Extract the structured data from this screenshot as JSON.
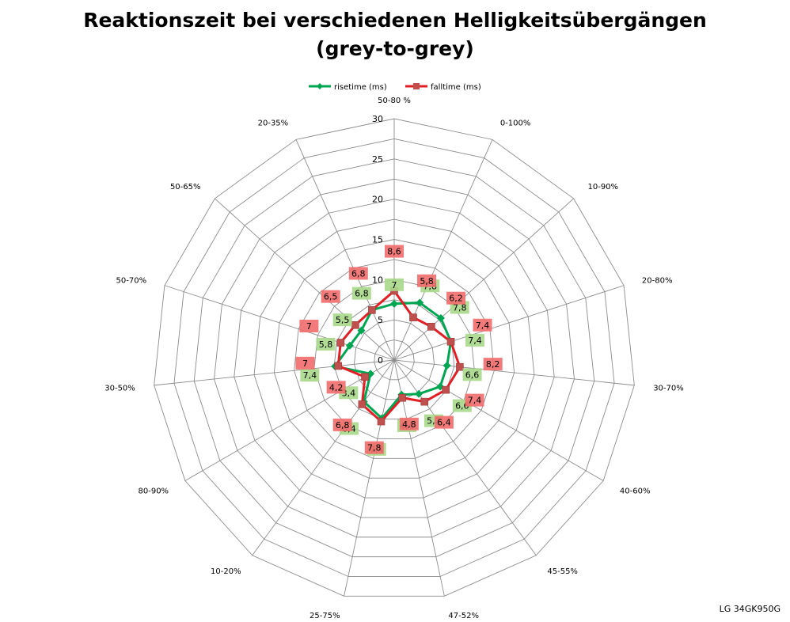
{
  "chart_data": {
    "type": "radar",
    "title_lines": [
      "Reaktionszeit bei verschiedenen Helligkeitsübergängen",
      "(grey-to-grey)"
    ],
    "categories": [
      "50-80 %",
      "0-100%",
      "10-90%",
      "20-80%",
      "30-70%",
      "40-60%",
      "45-55%",
      "47-52%",
      "25-75%",
      "10-20%",
      "80-90%",
      "30-50%",
      "50-70%",
      "50-65%",
      "20-35%"
    ],
    "ylim": [
      0,
      30
    ],
    "ticks": [
      0,
      5,
      10,
      15,
      20,
      25,
      30
    ],
    "grid": true,
    "legend_position": "top",
    "series": [
      {
        "name": "risetime (ms)",
        "color": "#00a651",
        "marker": "diamond",
        "label_bg": "#a8d88a",
        "values": [
          7,
          7.8,
          7.8,
          7.4,
          6.6,
          6.6,
          5.2,
          4.4,
          7.4,
          6.4,
          3.4,
          7.4,
          5.8,
          5.5,
          6.8
        ],
        "labels": [
          "7",
          "7,8",
          "7,8",
          "7,4",
          "6,6",
          "6,6",
          "5,2",
          "4,4",
          "7,4",
          "6,4",
          "3,4",
          "7,4",
          "5,8",
          "5,5",
          "6,8"
        ]
      },
      {
        "name": "falltime (ms)",
        "color": "#e31e24",
        "marker": "square",
        "label_bg": "#f26b6b",
        "values": [
          8.6,
          5.8,
          6.2,
          7.4,
          8.2,
          7.4,
          6.4,
          4.8,
          7.8,
          6.8,
          4.2,
          7,
          7,
          6.5,
          6.8
        ],
        "labels": [
          "8,6",
          "5,8",
          "6,2",
          "7,4",
          "8,2",
          "7,4",
          "6,4",
          "4,8",
          "7,8",
          "6,8",
          "4,2",
          "7",
          "7",
          "6,5",
          "6,8"
        ]
      }
    ]
  },
  "watermark": "LG 34GK950G"
}
